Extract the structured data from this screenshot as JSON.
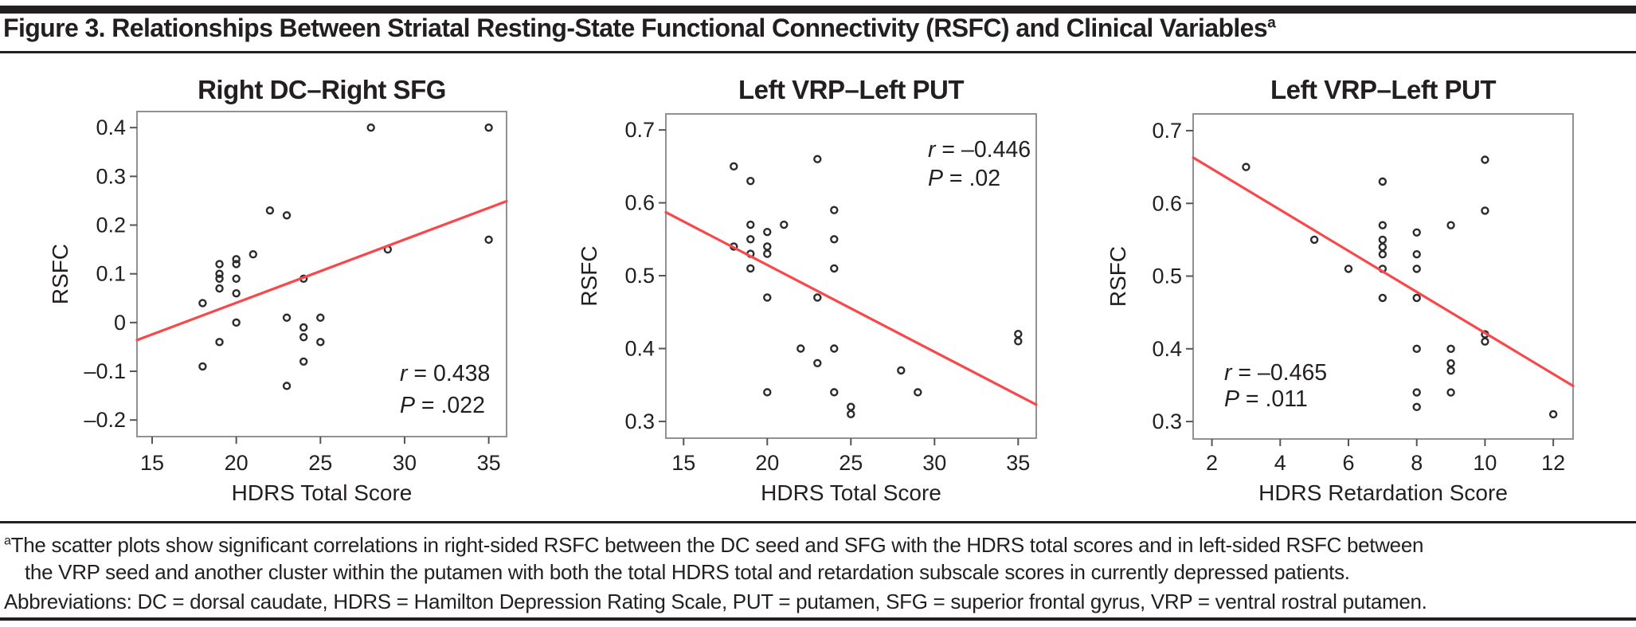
{
  "header": {
    "title": "Figure 3. Relationships Between Striatal Resting-State Functional Connectivity (RSFC) and Clinical Variables",
    "superscript": "a"
  },
  "colors": {
    "text": "#231f20",
    "regression_line": "#f8484c",
    "marker_stroke": "#2d2a2b",
    "plot_border": "#919191",
    "tick": "#555555"
  },
  "chart_data": [
    {
      "type": "scatter",
      "title": "Right DC–Right SFG",
      "xlabel": "HDRS Total Score",
      "ylabel": "RSFC",
      "xlim": [
        14.1,
        36.06
      ],
      "ylim": [
        -0.234,
        0.433
      ],
      "xticks": [
        15,
        20,
        25,
        30,
        35
      ],
      "xtick_labels": [
        "15",
        "20",
        "25",
        "30",
        "35"
      ],
      "yticks": [
        0.4,
        0.3,
        0.2,
        0.1,
        0.0,
        -0.1,
        -0.2
      ],
      "ytick_labels": [
        "0.4",
        "0.3",
        "0.2",
        "0.1",
        "0",
        "–0.1",
        "–0.2"
      ],
      "grid": false,
      "points": [
        [
          18,
          0.04
        ],
        [
          18,
          -0.09
        ],
        [
          19,
          0.12
        ],
        [
          19,
          0.1
        ],
        [
          19,
          0.09
        ],
        [
          19,
          0.07
        ],
        [
          19,
          -0.04
        ],
        [
          20,
          0.13
        ],
        [
          20,
          0.12
        ],
        [
          20,
          0.09
        ],
        [
          20,
          0.06
        ],
        [
          20,
          0.0
        ],
        [
          21,
          0.14
        ],
        [
          22,
          0.23
        ],
        [
          23,
          0.22
        ],
        [
          23,
          0.01
        ],
        [
          23,
          -0.13
        ],
        [
          24,
          0.09
        ],
        [
          24,
          -0.01
        ],
        [
          24,
          -0.03
        ],
        [
          24,
          -0.08
        ],
        [
          25,
          0.01
        ],
        [
          25,
          -0.04
        ],
        [
          28,
          0.4
        ],
        [
          29,
          0.15
        ],
        [
          35,
          0.4
        ],
        [
          35,
          0.17
        ]
      ],
      "regression": {
        "x1": 14.1,
        "y1": -0.036,
        "x2": 36.06,
        "y2": 0.249
      },
      "annotation": {
        "r_var": "r",
        "r_text": " = 0.438",
        "p_var": "P",
        "p_text": " = .022",
        "position": "bottom-right"
      }
    },
    {
      "type": "scatter",
      "title": "Left VRP–Left PUT",
      "xlabel": "HDRS Total Score",
      "ylabel": "RSFC",
      "xlim": [
        13.94,
        36.08
      ],
      "ylim": [
        0.277,
        0.722
      ],
      "xticks": [
        15,
        20,
        25,
        30,
        35
      ],
      "xtick_labels": [
        "15",
        "20",
        "25",
        "30",
        "35"
      ],
      "yticks": [
        0.7,
        0.6,
        0.5,
        0.4,
        0.3
      ],
      "ytick_labels": [
        "0.7",
        "0.6",
        "0.5",
        "0.4",
        "0.3"
      ],
      "grid": false,
      "points": [
        [
          18,
          0.65
        ],
        [
          18,
          0.54
        ],
        [
          19,
          0.63
        ],
        [
          19,
          0.57
        ],
        [
          19,
          0.55
        ],
        [
          19,
          0.53
        ],
        [
          19,
          0.51
        ],
        [
          20,
          0.56
        ],
        [
          20,
          0.54
        ],
        [
          20,
          0.53
        ],
        [
          20,
          0.47
        ],
        [
          20,
          0.34
        ],
        [
          21,
          0.57
        ],
        [
          22,
          0.4
        ],
        [
          23,
          0.66
        ],
        [
          23,
          0.47
        ],
        [
          23,
          0.38
        ],
        [
          24,
          0.59
        ],
        [
          24,
          0.55
        ],
        [
          24,
          0.51
        ],
        [
          24,
          0.4
        ],
        [
          24,
          0.34
        ],
        [
          25,
          0.32
        ],
        [
          25,
          0.31
        ],
        [
          28,
          0.37
        ],
        [
          29,
          0.34
        ],
        [
          35,
          0.42
        ],
        [
          35,
          0.41
        ]
      ],
      "regression": {
        "x1": 13.94,
        "y1": 0.587,
        "x2": 36.08,
        "y2": 0.323
      },
      "annotation": {
        "r_var": "r",
        "r_text": " = –0.446",
        "p_var": "P",
        "p_text": " = .02",
        "position": "top-right"
      }
    },
    {
      "type": "scatter",
      "title": "Left VRP–Left PUT",
      "xlabel": "HDRS Retardation Score",
      "ylabel": "RSFC",
      "xlim": [
        1.45,
        12.58
      ],
      "ylim": [
        0.276,
        0.723
      ],
      "xticks": [
        2,
        4,
        6,
        8,
        10,
        12
      ],
      "xtick_labels": [
        "2",
        "4",
        "6",
        "8",
        "10",
        "12"
      ],
      "yticks": [
        0.7,
        0.6,
        0.5,
        0.4,
        0.3
      ],
      "ytick_labels": [
        "0.7",
        "0.6",
        "0.5",
        "0.4",
        "0.3"
      ],
      "grid": false,
      "points": [
        [
          3,
          0.65
        ],
        [
          5,
          0.55
        ],
        [
          6,
          0.51
        ],
        [
          7,
          0.63
        ],
        [
          7,
          0.57
        ],
        [
          7,
          0.55
        ],
        [
          7,
          0.54
        ],
        [
          7,
          0.53
        ],
        [
          7,
          0.51
        ],
        [
          7,
          0.47
        ],
        [
          8,
          0.56
        ],
        [
          8,
          0.53
        ],
        [
          8,
          0.51
        ],
        [
          8,
          0.47
        ],
        [
          8,
          0.4
        ],
        [
          8,
          0.34
        ],
        [
          8,
          0.32
        ],
        [
          9,
          0.57
        ],
        [
          9,
          0.4
        ],
        [
          9,
          0.38
        ],
        [
          9,
          0.37
        ],
        [
          9,
          0.34
        ],
        [
          10,
          0.66
        ],
        [
          10,
          0.59
        ],
        [
          10,
          0.42
        ],
        [
          10,
          0.41
        ],
        [
          12,
          0.31
        ]
      ],
      "regression": {
        "x1": 1.45,
        "y1": 0.663,
        "x2": 12.58,
        "y2": 0.349
      },
      "annotation": {
        "r_var": "r",
        "r_text": " = –0.465",
        "p_var": "P",
        "p_text": " = .011",
        "position": "bottom-left"
      }
    }
  ],
  "footnote": {
    "marker": "a",
    "line1": "The scatter plots show significant correlations in right-sided RSFC between the DC seed and SFG with the HDRS total scores and in left-sided RSFC between",
    "line2": "the VRP seed and another cluster within the putamen with both the total HDRS total and retardation subscale scores in currently depressed patients.",
    "line3": "Abbreviations: DC = dorsal caudate, HDRS = Hamilton Depression Rating Scale, PUT = putamen, SFG = superior frontal gyrus, VRP = ventral rostral putamen."
  }
}
